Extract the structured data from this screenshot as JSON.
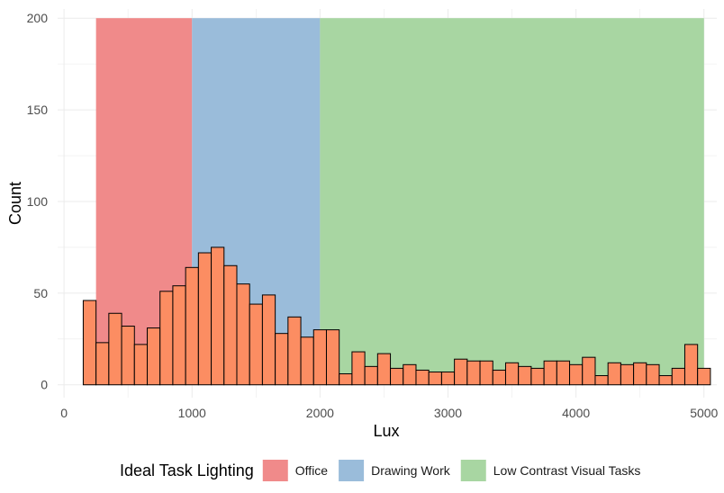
{
  "chart_data": {
    "type": "bar",
    "subtype": "histogram",
    "xlabel": "Lux",
    "ylabel": "Count",
    "xlim": [
      -50,
      5100
    ],
    "ylim": [
      -7,
      205
    ],
    "xticks": [
      0,
      1000,
      2000,
      3000,
      4000,
      5000
    ],
    "yticks": [
      0,
      50,
      100,
      150,
      200
    ],
    "grid": true,
    "legend_position": "bottom",
    "legend_title": "Ideal Task Lighting",
    "bins": {
      "start": 150,
      "width": 100
    },
    "values": [
      46,
      23,
      39,
      32,
      22,
      31,
      51,
      54,
      64,
      72,
      75,
      65,
      55,
      44,
      49,
      28,
      37,
      26,
      30,
      30,
      6,
      18,
      10,
      17,
      9,
      11,
      8,
      7,
      7,
      14,
      13,
      13,
      8,
      12,
      10,
      9,
      13,
      13,
      11,
      15,
      5,
      12,
      11,
      12,
      11,
      5,
      9,
      22,
      9
    ],
    "bar_color": "#FC8D62",
    "bar_outline": "#000000",
    "ranges": [
      {
        "name": "Office",
        "xmin": 250,
        "xmax": 1000,
        "ymax": 200,
        "color": "#F08A8A"
      },
      {
        "name": "Drawing Work",
        "xmin": 1000,
        "xmax": 2000,
        "ymax": 200,
        "color": "#9ABCDA"
      },
      {
        "name": "Low Contrast Visual Tasks",
        "xmin": 2000,
        "xmax": 5000,
        "ymax": 200,
        "color": "#A8D6A2"
      }
    ]
  }
}
